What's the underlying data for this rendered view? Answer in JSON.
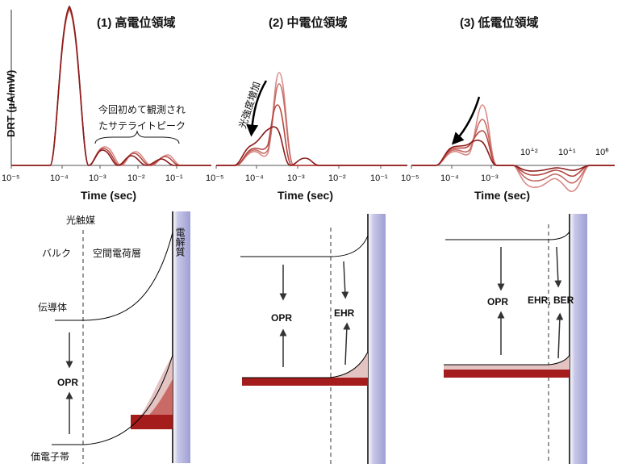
{
  "panels": [
    {
      "title": "(1) 高電位領域",
      "bottom": {
        "arrow_label": "OPR"
      }
    },
    {
      "title": "(2) 中電位領域",
      "annotation": "光強度増加",
      "bottom": {
        "arrow_label_left": "OPR",
        "arrow_label_right": "EHR"
      }
    },
    {
      "title": "(3) 低電位領域",
      "bottom": {
        "arrow_label_left": "OPR",
        "arrow_label_right": "EHR, BER"
      }
    }
  ],
  "top_axes": {
    "ylabel": "DRT (µA/mW)",
    "xlabel": "Time (sec)",
    "ticks": [
      "10⁻⁵",
      "10⁻⁴",
      "10⁻³",
      "10⁻²",
      "10⁻¹"
    ],
    "panel3_upper_ticks": [
      "10⁻²",
      "10⁻¹",
      "10⁰"
    ],
    "satellite_note_line1": "今回初めて観測され",
    "satellite_note_line2": "たサテライトピーク"
  },
  "band_diagram_labels": {
    "photocatalyst": "光触媒",
    "bulk": "バルク",
    "space_charge_layer": "空間電荷層",
    "conduction_band": "伝導体",
    "valence_band": "価電子帯",
    "electrolyte": "電解質"
  },
  "colors": {
    "curve_dark": "#8b1a1a",
    "curve_mid": "#b5463f",
    "curve_light": "#d98a86",
    "electrolyte": "#b9b9e0",
    "hole_fill": "#a51c1c"
  }
}
